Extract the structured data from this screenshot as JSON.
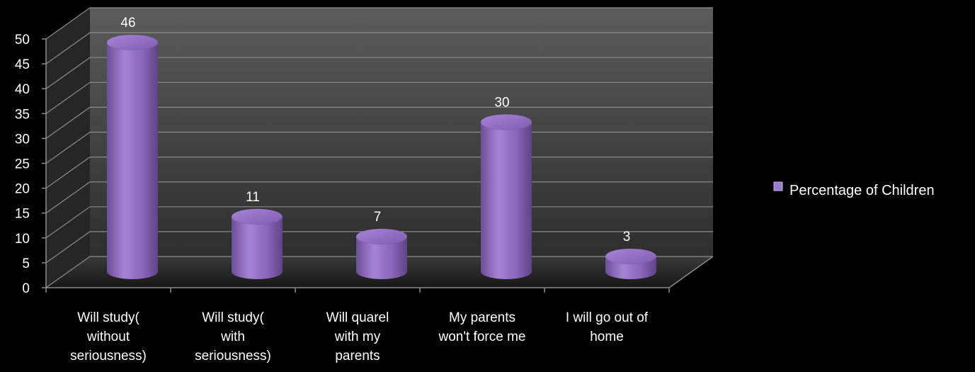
{
  "chart_data": {
    "type": "bar",
    "categories": [
      [
        "Will study(",
        "without",
        "seriousness)"
      ],
      [
        "Will study(",
        "with",
        "seriousness)"
      ],
      [
        "Will quarel",
        "with my",
        "parents"
      ],
      [
        "My parents",
        "won't force me"
      ],
      [
        "I will  go out of",
        "home"
      ]
    ],
    "series": [
      {
        "name": "Percentage of Children",
        "values": [
          46,
          11,
          7,
          30,
          3
        ],
        "color": "#8e6bbd"
      }
    ],
    "ylim": [
      0,
      50
    ],
    "yticks": [
      0,
      5,
      10,
      15,
      20,
      25,
      30,
      35,
      40,
      45,
      50
    ],
    "grid": true,
    "legend_position": "right",
    "style": "3d-cylinder"
  }
}
